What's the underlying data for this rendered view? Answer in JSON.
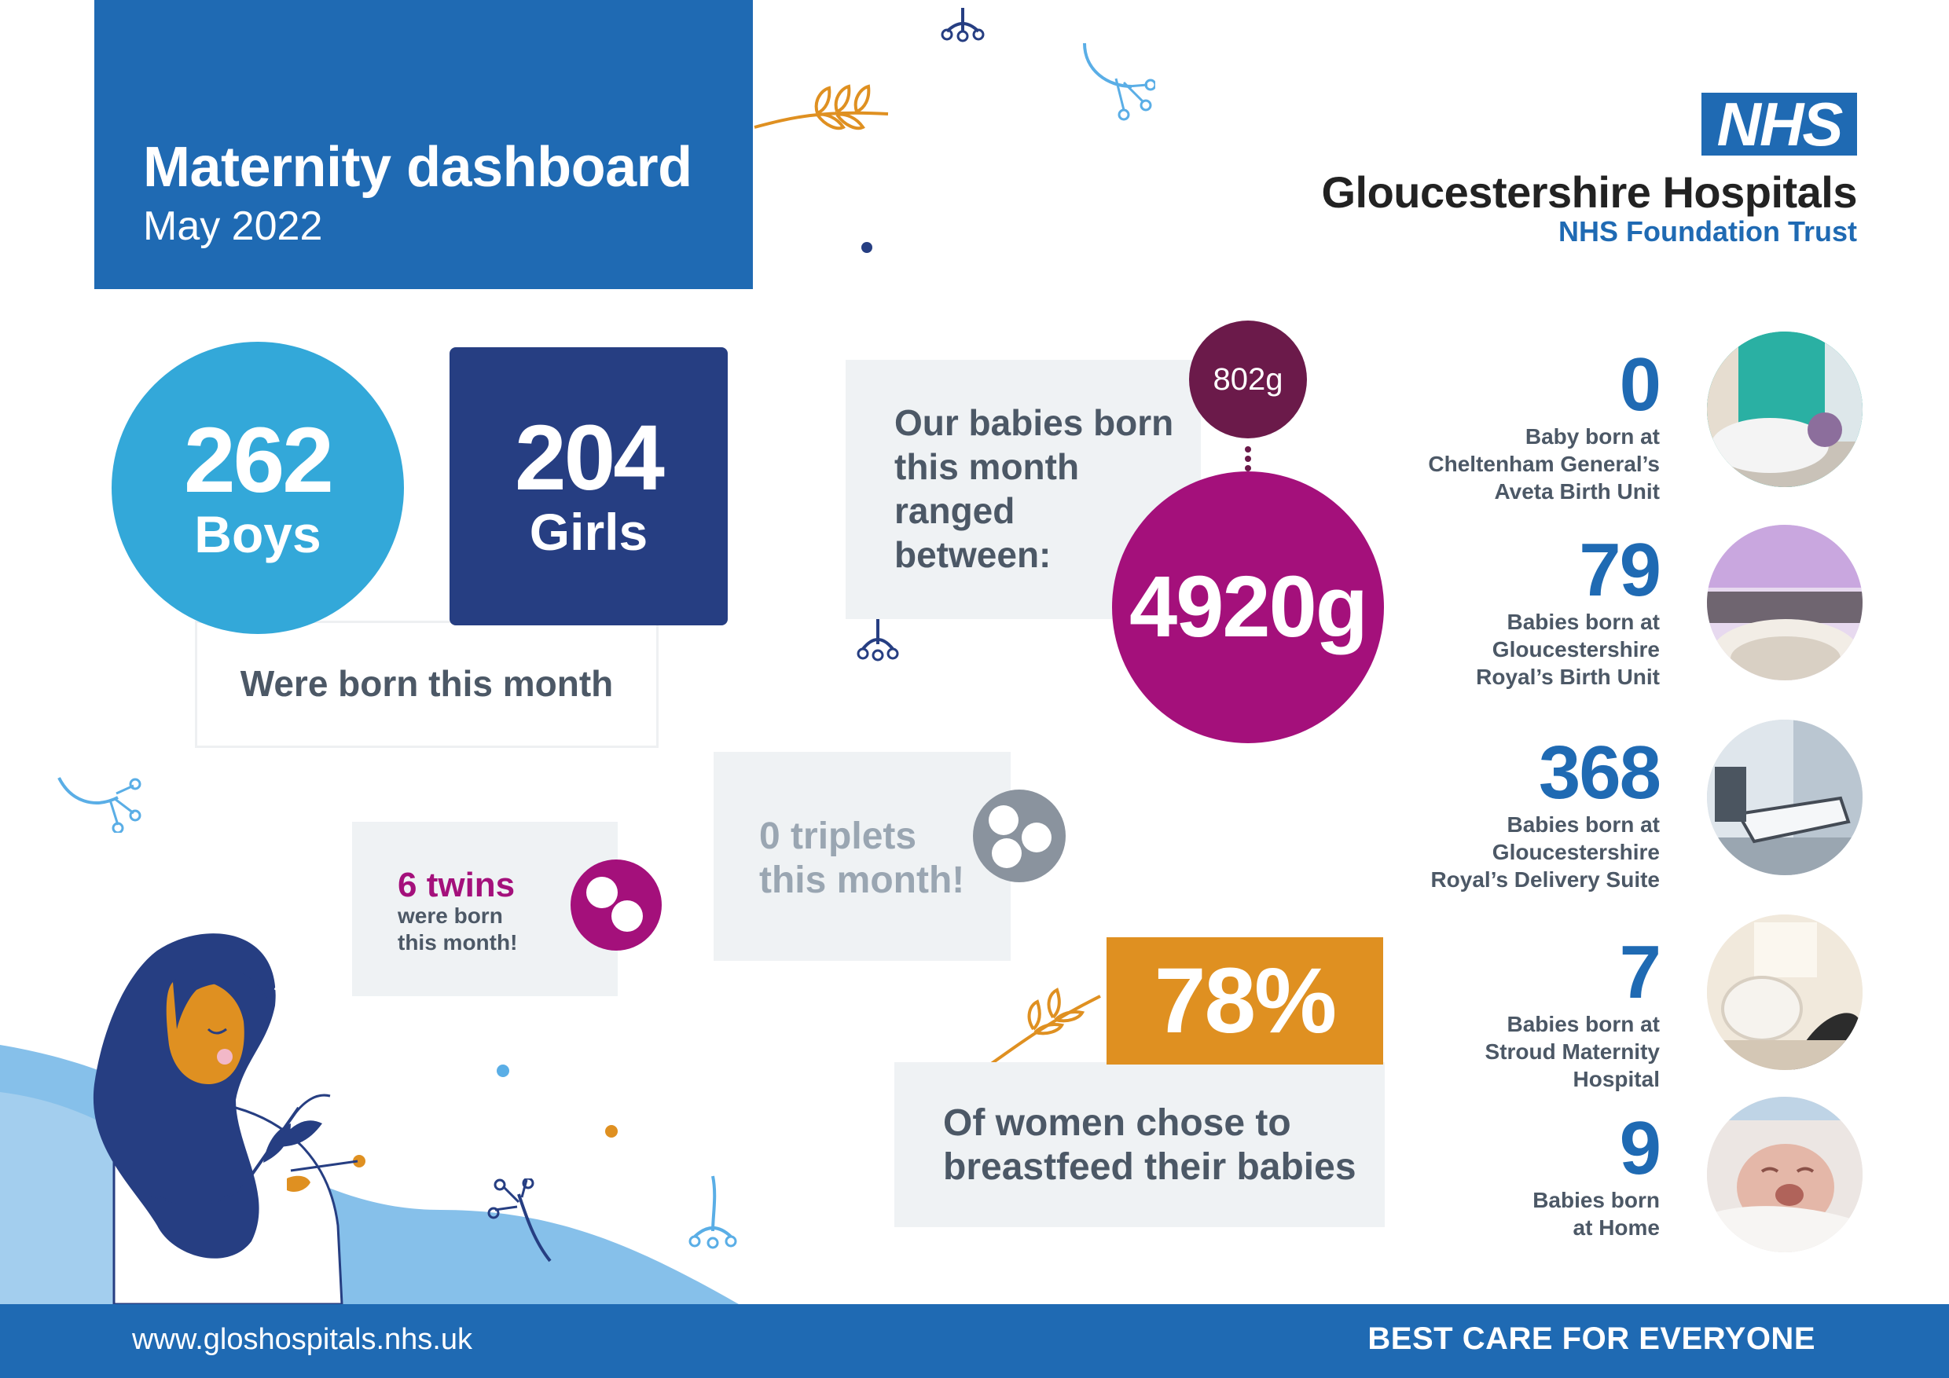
{
  "header": {
    "title": "Maternity dashboard",
    "subtitle": "May 2022"
  },
  "nhs": {
    "logo_text": "NHS",
    "trust_name": "Gloucestershire Hospitals",
    "trust_sub": "NHS Foundation Trust"
  },
  "births": {
    "boys_value": "262",
    "boys_label": "Boys",
    "girls_value": "204",
    "girls_label": "Girls",
    "caption": "Were born this month"
  },
  "weights": {
    "intro_line1": "Our babies born",
    "intro_line2": "this month",
    "intro_line3": "ranged",
    "intro_line4": "between:",
    "min": "802g",
    "max": "4920g"
  },
  "twins": {
    "count_label": "6 twins",
    "line1": "were born",
    "line2": "this month!"
  },
  "triplets": {
    "line1": "0 triplets",
    "line2": "this month!"
  },
  "breastfeeding": {
    "percent": "78%",
    "line1": "Of women chose to",
    "line2": "breastfeed their babies"
  },
  "locations": [
    {
      "value": "0",
      "line1": "Baby born at",
      "line2": "Cheltenham General’s",
      "line3": "Aveta Birth Unit"
    },
    {
      "value": "79",
      "line1": "Babies born at",
      "line2": "Gloucestershire",
      "line3": "Royal’s Birth Unit"
    },
    {
      "value": "368",
      "line1": "Babies born at",
      "line2": "Gloucestershire",
      "line3": "Royal’s Delivery Suite"
    },
    {
      "value": "7",
      "line1": "Babies born at",
      "line2": "Stroud Maternity",
      "line3": "Hospital"
    },
    {
      "value": "9",
      "line1": "Babies born",
      "line2": "at Home"
    }
  ],
  "footer": {
    "url": "www.gloshospitals.nhs.uk",
    "slogan": "BEST CARE FOR EVERYONE"
  },
  "colors": {
    "nhs_blue": "#1f6ab3",
    "light_blue": "#33a8d9",
    "navy": "#263e82",
    "magenta": "#a4107b",
    "plum": "#6b1a4a",
    "orange": "#df9021",
    "panel_grey": "#eff2f4",
    "text_grey": "#4c5866"
  },
  "icons": [
    "wheat-sprig-icon",
    "dandelion-sprig-icon",
    "twins-icon",
    "triplets-icon",
    "woman-with-flowers-illustration"
  ]
}
